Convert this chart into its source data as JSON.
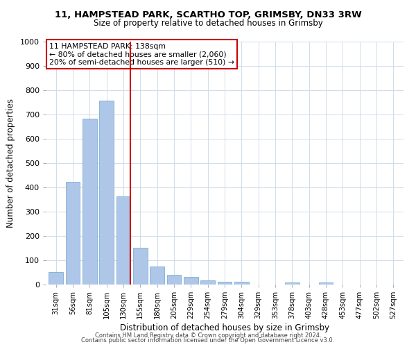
{
  "title1": "11, HAMPSTEAD PARK, SCARTHO TOP, GRIMSBY, DN33 3RW",
  "title2": "Size of property relative to detached houses in Grimsby",
  "xlabel": "Distribution of detached houses by size in Grimsby",
  "ylabel": "Number of detached properties",
  "categories": [
    "31sqm",
    "56sqm",
    "81sqm",
    "105sqm",
    "130sqm",
    "155sqm",
    "180sqm",
    "205sqm",
    "229sqm",
    "254sqm",
    "279sqm",
    "304sqm",
    "329sqm",
    "353sqm",
    "378sqm",
    "403sqm",
    "428sqm",
    "453sqm",
    "477sqm",
    "502sqm",
    "527sqm"
  ],
  "values": [
    52,
    422,
    682,
    757,
    362,
    152,
    75,
    40,
    32,
    17,
    12,
    12,
    0,
    0,
    10,
    0,
    10,
    0,
    0,
    0,
    0
  ],
  "bar_color": "#aec6e8",
  "bar_edge_color": "#7aafd4",
  "vline_x_index": 4.42,
  "vline_color": "#cc0000",
  "annotation_title": "11 HAMPSTEAD PARK: 138sqm",
  "annotation_line1": "← 80% of detached houses are smaller (2,060)",
  "annotation_line2": "20% of semi-detached houses are larger (510) →",
  "annotation_box_color": "#cc0000",
  "ylim": [
    0,
    1000
  ],
  "yticks": [
    0,
    100,
    200,
    300,
    400,
    500,
    600,
    700,
    800,
    900,
    1000
  ],
  "footer1": "Contains HM Land Registry data © Crown copyright and database right 2024.",
  "footer2": "Contains public sector information licensed under the Open Government Licence v3.0.",
  "bg_color": "#ffffff",
  "grid_color": "#d0dcea"
}
